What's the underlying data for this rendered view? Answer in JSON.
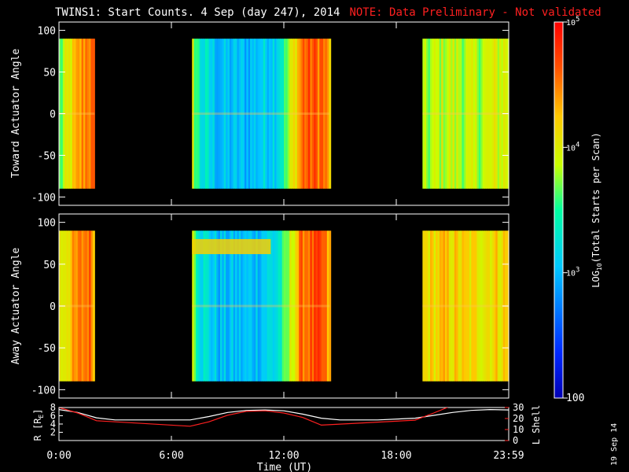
{
  "title": "TWINS1: Start Counts.  4 Sep (day 247), 2014",
  "note": "NOTE: Data Preliminary - Not validated",
  "date_stamp": "19 Sep 14",
  "colors": {
    "background": "#000000",
    "axes": "#ffffff",
    "note": "#ff2020",
    "lshell": "#ff2020",
    "radius": "#ffffff"
  },
  "chart_data": [
    {
      "type": "heatmap",
      "name": "toward",
      "ylabel": "Toward Actuator Angle",
      "ylim": [
        -110,
        110
      ],
      "yticks": [
        100,
        50,
        0,
        -50,
        -100
      ],
      "xlim": [
        0,
        24
      ],
      "angle_range": [
        -90,
        90
      ],
      "data_intervals_ut": [
        [
          0,
          1.9
        ],
        [
          7.1,
          14.45
        ],
        [
          19.4,
          24
        ]
      ],
      "level_profile_log10": [
        [
          0,
          3.6
        ],
        [
          0.5,
          4.0
        ],
        [
          1.0,
          4.3
        ],
        [
          1.5,
          4.6
        ],
        [
          1.9,
          4.4
        ],
        [
          7.1,
          3.9
        ],
        [
          7.5,
          3.3
        ],
        [
          8.5,
          3.0
        ],
        [
          10.0,
          3.0
        ],
        [
          11.5,
          3.2
        ],
        [
          12.0,
          3.5
        ],
        [
          12.5,
          4.1
        ],
        [
          13.0,
          4.6
        ],
        [
          14.0,
          4.6
        ],
        [
          14.45,
          4.2
        ],
        [
          19.4,
          3.7
        ],
        [
          20.5,
          3.9
        ],
        [
          22.0,
          3.8
        ],
        [
          24.0,
          4.0
        ]
      ]
    },
    {
      "type": "heatmap",
      "name": "away",
      "ylabel": "Away Actuator Angle",
      "ylim": [
        -110,
        110
      ],
      "yticks": [
        100,
        50,
        0,
        -50,
        -100
      ],
      "xlim": [
        0,
        24
      ],
      "xticks": [
        "0:00",
        "6:00",
        "12:00",
        "18:00",
        "23:59"
      ],
      "angle_range": [
        -90,
        90
      ],
      "data_intervals_ut": [
        [
          0,
          1.9
        ],
        [
          7.1,
          14.45
        ],
        [
          19.4,
          24
        ]
      ],
      "level_profile_log10": [
        [
          0,
          4.0
        ],
        [
          0.5,
          4.2
        ],
        [
          1.0,
          4.4
        ],
        [
          1.5,
          4.6
        ],
        [
          1.9,
          4.4
        ],
        [
          7.1,
          3.9
        ],
        [
          7.5,
          3.3
        ],
        [
          8.5,
          3.0
        ],
        [
          10.0,
          3.0
        ],
        [
          11.5,
          3.2
        ],
        [
          12.0,
          3.5
        ],
        [
          12.5,
          4.1
        ],
        [
          13.0,
          4.6
        ],
        [
          14.0,
          4.6
        ],
        [
          14.45,
          4.2
        ],
        [
          19.4,
          4.1
        ],
        [
          20.5,
          4.2
        ],
        [
          22.0,
          4.1
        ],
        [
          24.0,
          4.2
        ]
      ],
      "high_band": {
        "angle_range": [
          62,
          80
        ],
        "time_range": [
          7.1,
          11.3
        ],
        "log10": 4.2
      }
    },
    {
      "type": "line",
      "name": "orbit",
      "xlabel": "Time (UT)",
      "xlim": [
        0,
        24
      ],
      "xticks": [
        "0:00",
        "6:00",
        "12:00",
        "18:00",
        "23:59"
      ],
      "ylabel_left": "R [R",
      "ylabel_left_sub": "E",
      "ylabel_left_close": "]",
      "ylim_left": [
        0,
        8
      ],
      "yticks_left": [
        2,
        4,
        6,
        8
      ],
      "ylabel_right": "L Shell",
      "ylim_right": [
        0,
        30
      ],
      "yticks_right": [
        0,
        10,
        20,
        30
      ],
      "series": [
        {
          "axis": "left",
          "color": "#ffffff",
          "x": [
            0,
            1,
            2,
            3,
            5,
            7,
            8,
            9,
            10,
            11,
            12,
            13,
            14,
            15,
            17,
            19,
            20,
            21,
            22,
            23,
            24
          ],
          "y": [
            7.5,
            6.8,
            5.5,
            5.0,
            5.0,
            5.0,
            5.8,
            6.8,
            7.3,
            7.4,
            7.2,
            6.4,
            5.4,
            5.0,
            5.0,
            5.4,
            6.1,
            6.8,
            7.3,
            7.5,
            7.4
          ]
        },
        {
          "axis": "right",
          "color": "#ff2020",
          "x": [
            0,
            1,
            2,
            7,
            8,
            9,
            10,
            11,
            12,
            13,
            14,
            19,
            20,
            21
          ],
          "y": [
            30,
            25,
            18,
            13,
            17,
            23,
            26.5,
            27,
            25,
            21,
            14,
            18.5,
            25,
            32
          ]
        }
      ]
    }
  ],
  "colorbar": {
    "ylabel": "LOG",
    "ylabel_sub": "10",
    "ylabel_rest": "(Total Starts per Scan)",
    "range_log10": [
      2,
      5
    ],
    "tick_labels": [
      {
        "base": "10",
        "exp": "5",
        "log10": 5
      },
      {
        "base": "10",
        "exp": "4",
        "log10": 4
      },
      {
        "base": "10",
        "exp": "3",
        "log10": 3
      },
      {
        "base": "100",
        "exp": "",
        "log10": 2
      }
    ]
  }
}
